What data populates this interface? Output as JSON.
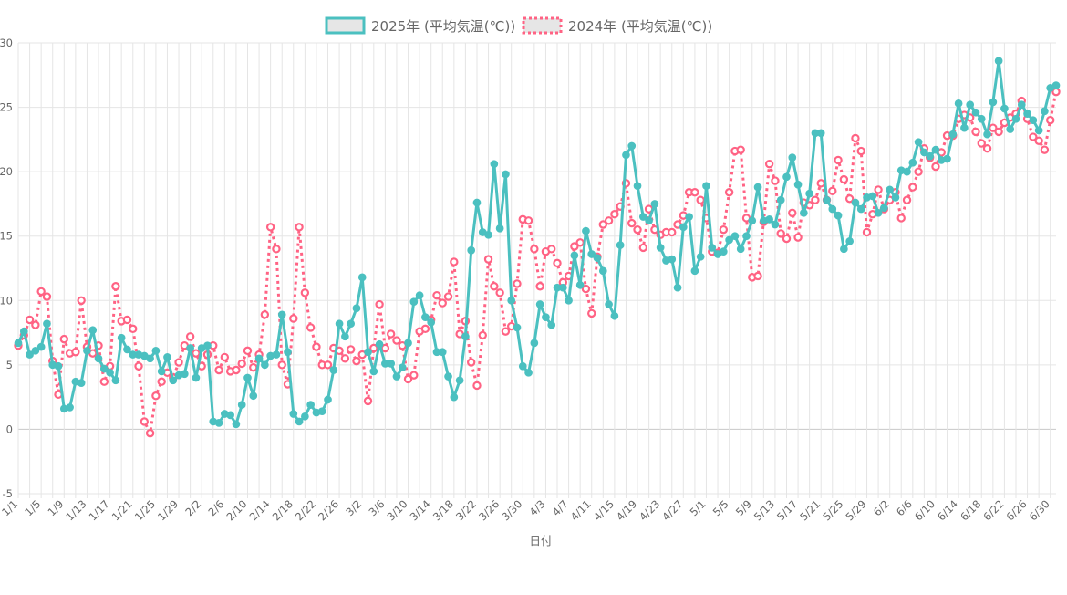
{
  "chart_data": {
    "type": "line",
    "xlabel": "日付",
    "ylabel": "",
    "ylim": [
      -5,
      30
    ],
    "yticks": [
      -5,
      0,
      5,
      10,
      15,
      20,
      25,
      30
    ],
    "grid": true,
    "legend_position": "top",
    "start_date": "1/1",
    "x_tick_labels": [
      "1/1",
      "1/5",
      "1/9",
      "1/13",
      "1/17",
      "1/21",
      "1/25",
      "1/29",
      "2/2",
      "2/6",
      "2/10",
      "2/14",
      "2/18",
      "2/22",
      "2/26",
      "3/2",
      "3/6",
      "3/10",
      "3/14",
      "3/18",
      "3/22",
      "3/26",
      "3/30",
      "4/3",
      "4/7",
      "4/11",
      "4/15",
      "4/19",
      "4/23",
      "4/27",
      "5/1",
      "5/5",
      "5/9",
      "5/13",
      "5/17",
      "5/21",
      "5/25",
      "5/29",
      "6/2",
      "6/6",
      "6/10",
      "6/14",
      "6/18",
      "6/22",
      "6/26",
      "6/30"
    ],
    "series": [
      {
        "name": "2025年 (平均気温(℃))",
        "color": "#4bc0c0",
        "style": "solid",
        "values": [
          6.7,
          7.6,
          5.8,
          6.1,
          6.4,
          8.2,
          5.0,
          4.9,
          1.6,
          1.7,
          3.7,
          3.6,
          6.1,
          7.7,
          5.5,
          4.7,
          4.4,
          3.8,
          7.1,
          6.2,
          5.8,
          5.8,
          5.7,
          5.5,
          6.1,
          4.5,
          5.6,
          3.8,
          4.2,
          4.3,
          6.3,
          4.0,
          6.3,
          6.5,
          0.6,
          0.5,
          1.2,
          1.1,
          0.4,
          1.9,
          4.0,
          2.6,
          5.5,
          5.0,
          5.7,
          5.8,
          8.9,
          6.0,
          1.2,
          0.6,
          1.0,
          1.9,
          1.3,
          1.4,
          2.3,
          4.6,
          8.2,
          7.2,
          8.2,
          9.4,
          11.8,
          6.0,
          4.5,
          6.6,
          5.1,
          5.1,
          4.1,
          4.8,
          6.7,
          9.9,
          10.4,
          8.7,
          8.3,
          6.0,
          6.0,
          4.1,
          2.5,
          3.8,
          7.2,
          13.9,
          17.6,
          15.3,
          15.1,
          20.6,
          15.6,
          19.8,
          10.0,
          7.9,
          4.9,
          4.4,
          6.7,
          9.7,
          8.7,
          8.1,
          11.0,
          11.0,
          10.0,
          13.5,
          11.2,
          15.4,
          13.6,
          13.3,
          12.3,
          9.7,
          8.8,
          14.3,
          21.3,
          22.0,
          18.9,
          16.5,
          16.2,
          17.5,
          14.1,
          13.1,
          13.2,
          11.0,
          15.7,
          16.5,
          12.3,
          13.4,
          18.9,
          14.1,
          13.6,
          13.8,
          14.7,
          15.0,
          14.0,
          15.0,
          16.2,
          18.8,
          16.2,
          16.3,
          15.9,
          17.8,
          19.6,
          21.1,
          19.0,
          16.8,
          18.3,
          23.0,
          23.0,
          17.8,
          17.1,
          16.6,
          14.0,
          14.6,
          17.6,
          17.1,
          18.0,
          18.1,
          16.8,
          17.2,
          18.6,
          18.0,
          20.1,
          20.0,
          20.7,
          22.3,
          21.5,
          21.2,
          21.7,
          20.9,
          21.0,
          22.9,
          25.3,
          23.4,
          25.2,
          24.6,
          24.1,
          22.9,
          25.4,
          28.6,
          24.9,
          23.3,
          24.1,
          25.2,
          24.5,
          24.0,
          23.2,
          24.7,
          26.5,
          26.7
        ]
      },
      {
        "name": "2024年 (平均気温(℃))",
        "color": "#ff6384",
        "style": "dotted",
        "values": [
          6.5,
          7.3,
          8.5,
          8.1,
          10.7,
          10.3,
          5.3,
          2.7,
          7.0,
          5.9,
          6.0,
          10.0,
          6.4,
          5.9,
          6.5,
          3.7,
          4.9,
          11.1,
          8.4,
          8.5,
          7.8,
          4.9,
          0.6,
          -0.3,
          2.6,
          3.7,
          4.4,
          4.0,
          5.2,
          6.5,
          7.2,
          5.9,
          4.9,
          5.8,
          6.5,
          4.6,
          5.6,
          4.5,
          4.6,
          5.1,
          6.1,
          4.8,
          5.8,
          8.9,
          15.7,
          14.0,
          5.0,
          3.5,
          8.6,
          15.7,
          10.6,
          7.9,
          6.4,
          5.0,
          5.0,
          6.3,
          6.1,
          5.5,
          6.2,
          5.3,
          5.8,
          2.2,
          6.3,
          9.7,
          6.3,
          7.4,
          6.9,
          6.5,
          3.9,
          4.2,
          7.6,
          7.8,
          8.5,
          10.4,
          9.8,
          10.3,
          13.0,
          7.4,
          8.4,
          5.2,
          3.4,
          7.3,
          13.2,
          11.1,
          10.6,
          7.6,
          8.0,
          11.3,
          16.3,
          16.2,
          14.0,
          11.1,
          13.8,
          14.0,
          12.9,
          11.4,
          11.9,
          14.2,
          14.5,
          10.9,
          9.0,
          13.4,
          15.9,
          16.2,
          16.7,
          17.3,
          19.1,
          16.0,
          15.5,
          14.1,
          17.1,
          15.5,
          15.1,
          15.3,
          15.3,
          15.9,
          16.6,
          18.4,
          18.4,
          17.8,
          16.4,
          13.8,
          13.7,
          15.5,
          18.4,
          21.6,
          21.7,
          16.4,
          11.8,
          11.9,
          16.1,
          20.6,
          19.3,
          15.2,
          14.8,
          16.8,
          14.9,
          17.6,
          17.4,
          17.8,
          19.1,
          17.8,
          18.5,
          20.9,
          19.4,
          17.9,
          22.6,
          21.6,
          15.3,
          16.7,
          18.6,
          17.1,
          17.8,
          18.4,
          16.4,
          17.8,
          18.8,
          20.0,
          21.8,
          21.1,
          20.4,
          21.5,
          22.8,
          22.8,
          24.1,
          24.4,
          24.2,
          23.1,
          22.2,
          21.8,
          23.4,
          23.1,
          23.8,
          24.2,
          24.5,
          25.5,
          24.1,
          22.7,
          22.4,
          21.7,
          24.0,
          26.2
        ]
      }
    ]
  }
}
